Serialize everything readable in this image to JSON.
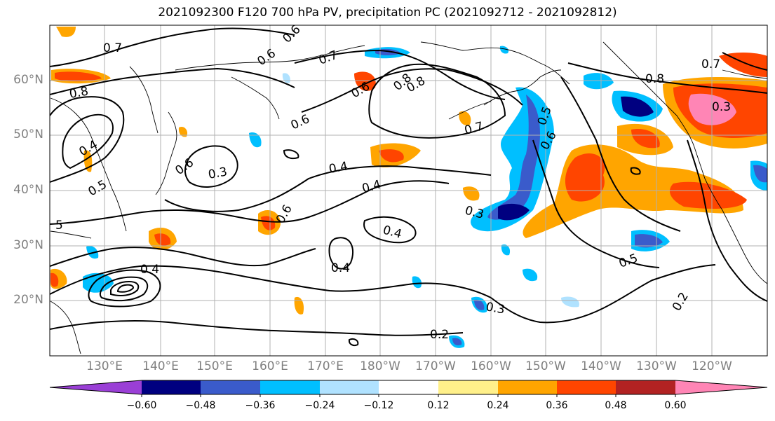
{
  "title": "2021092300 F120 700 hPa PV, precipitation PC (2021092712 - 2021092812)",
  "lat_labels": [
    "60°N",
    "50°N",
    "40°N",
    "30°N",
    "20°N"
  ],
  "lon_labels": [
    "130°E",
    "140°E",
    "150°E",
    "160°E",
    "170°E",
    "180°W",
    "170°W",
    "160°W",
    "150°W",
    "140°W",
    "130°W",
    "120°W"
  ],
  "colorbar": {
    "ticks": [
      "−0.60",
      "−0.48",
      "−0.36",
      "−0.24",
      "−0.12",
      "0.12",
      "0.24",
      "0.36",
      "0.48",
      "0.60"
    ],
    "colors": [
      "#9a3fd6",
      "#000080",
      "#3a5bcb",
      "#00bfff",
      "#b0e2ff",
      "#ffffff",
      "#fff08a",
      "#ffa500",
      "#ff4500",
      "#b22222",
      "#ff85b5"
    ]
  },
  "contour_labels": [
    "0.7",
    "0.6",
    "0.6",
    "0.7",
    "0.8",
    "0.6",
    "0.8",
    "0.6",
    "0.7",
    "0.6",
    "0.4",
    "0.3",
    "0.6",
    "0.4",
    "0.5",
    "0.4",
    "0.3",
    "0.4",
    "0.4",
    "0.3",
    "0.2",
    "0.5",
    "0.2",
    "0.8",
    "0.7",
    "0.3",
    "0.5",
    "0.6",
    "0.4",
    "5",
    "0.8"
  ],
  "colors": {
    "contour": "#000000",
    "grid": "#b0b0b0",
    "coast": "#000000"
  }
}
